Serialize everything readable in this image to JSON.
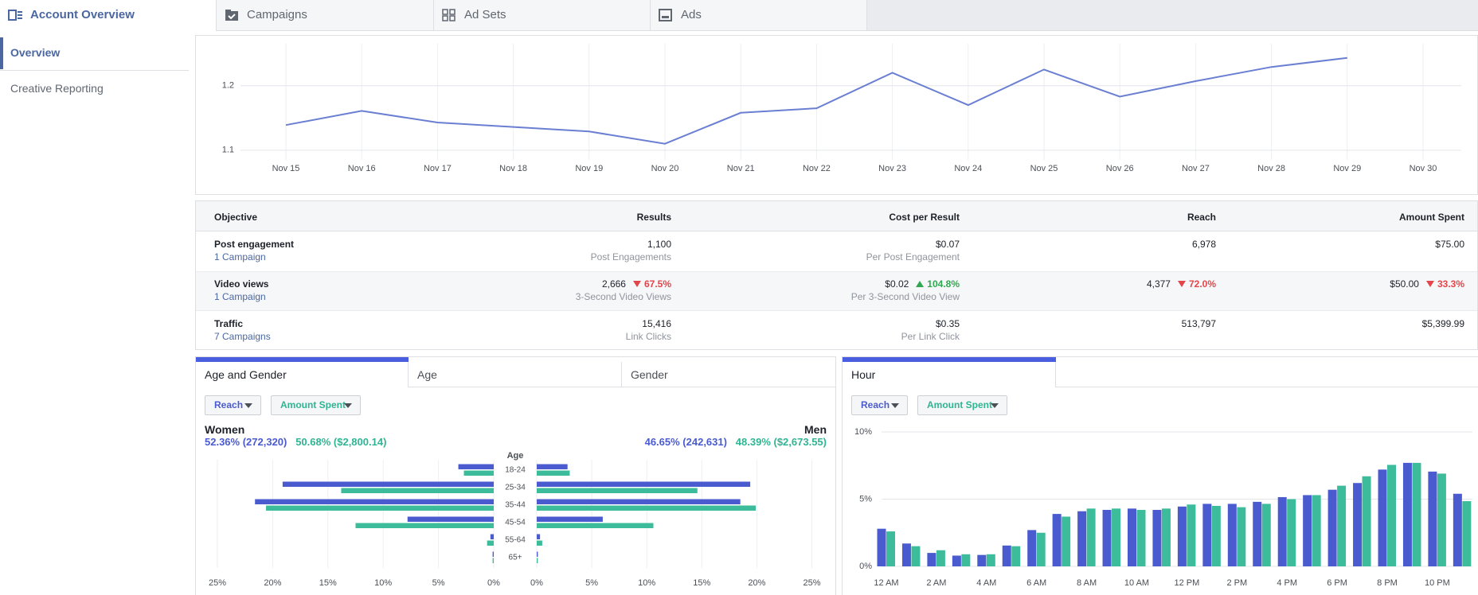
{
  "nav": {
    "tabs": [
      "Account Overview",
      "Campaigns",
      "Ad Sets",
      "Ads"
    ]
  },
  "sidebar": {
    "items": [
      "Overview",
      "Creative Reporting"
    ]
  },
  "trend_chart": {
    "type": "line",
    "categories": [
      "Nov 15",
      "Nov 16",
      "Nov 17",
      "Nov 18",
      "Nov 19",
      "Nov 20",
      "Nov 21",
      "Nov 22",
      "Nov 23",
      "Nov 24",
      "Nov 25",
      "Nov 26",
      "Nov 27",
      "Nov 28",
      "Nov 29",
      "Nov 30"
    ],
    "values": [
      1.139,
      1.161,
      1.143,
      1.136,
      1.129,
      1.11,
      1.158,
      1.165,
      1.22,
      1.17,
      1.225,
      1.183,
      1.207,
      1.229,
      1.243,
      null
    ],
    "color": "#6a7fd2",
    "ylim": [
      1.085,
      1.265
    ],
    "yticks": [
      1.1,
      1.2
    ],
    "grid": true
  },
  "table": {
    "columns": [
      "Objective",
      "Results",
      "Cost per Result",
      "Reach",
      "Amount Spent"
    ],
    "rows": [
      {
        "objective": "Post engagement",
        "campaigns": "1 Campaign",
        "cells": [
          {
            "value": "1,100",
            "sub": "Post Engagements"
          },
          {
            "value": "$0.07",
            "sub": "Per Post Engagement"
          },
          {
            "value": "6,978"
          },
          {
            "value": "$75.00"
          }
        ]
      },
      {
        "objective": "Video views",
        "campaigns": "1 Campaign",
        "cells": [
          {
            "value": "2,666",
            "sub": "3-Second Video Views",
            "change": {
              "text": "67.5%",
              "direction": "down"
            }
          },
          {
            "value": "$0.02",
            "sub": "Per 3-Second Video View",
            "change": {
              "text": "104.8%",
              "direction": "up"
            }
          },
          {
            "value": "4,377",
            "change": {
              "text": "72.0%",
              "direction": "down"
            }
          },
          {
            "value": "$50.00",
            "change": {
              "text": "33.3%",
              "direction": "down"
            }
          }
        ]
      },
      {
        "objective": "Traffic",
        "campaigns": "7 Campaigns",
        "cells": [
          {
            "value": "15,416",
            "sub": "Link Clicks"
          },
          {
            "value": "$0.35",
            "sub": "Per Link Click"
          },
          {
            "value": "513,797"
          },
          {
            "value": "$5,399.99"
          }
        ]
      }
    ]
  },
  "age_gender": {
    "type": "butterfly_bar",
    "tabs": [
      "Age and Gender",
      "Age",
      "Gender"
    ],
    "women": {
      "label": "Women",
      "reach": "52.36% (272,320)",
      "spent": "50.68% ($2,800.14)"
    },
    "men": {
      "label": "Men",
      "reach": "46.65% (242,631)",
      "spent": "48.39% ($2,673.55)"
    },
    "category_label": "Age",
    "categories": [
      "18-24",
      "25-34",
      "35-44",
      "45-54",
      "55-64",
      "65+"
    ],
    "series": [
      {
        "name": "Reach",
        "color": "#4a5bd0",
        "women": [
          3.2,
          19.1,
          21.6,
          7.8,
          0.3,
          0.1
        ],
        "men": [
          2.8,
          19.4,
          18.5,
          6.0,
          0.3,
          0.1
        ]
      },
      {
        "name": "Amount Spent",
        "color": "#3dbc9b",
        "women": [
          2.7,
          13.8,
          20.6,
          12.5,
          0.6,
          0.1
        ],
        "men": [
          3.0,
          14.6,
          19.9,
          10.6,
          0.5,
          0.1
        ]
      }
    ],
    "xlim": [
      0,
      25
    ],
    "xticks": [
      {
        "value": 0,
        "label": "0%"
      },
      {
        "value": 5,
        "label": "5%"
      },
      {
        "value": 10,
        "label": "10%"
      },
      {
        "value": 15,
        "label": "15%"
      },
      {
        "value": 20,
        "label": "20%"
      },
      {
        "value": 25,
        "label": "25%"
      }
    ],
    "grid": true
  },
  "hour_chart": {
    "type": "bar",
    "tabs": [
      "Hour"
    ],
    "categories": [
      "12 AM",
      null,
      "2 AM",
      null,
      "4 AM",
      null,
      "6 AM",
      null,
      "8 AM",
      null,
      "10 AM",
      null,
      "12 PM",
      null,
      "2 PM",
      null,
      "4 PM",
      null,
      "6 PM",
      null,
      "8 PM",
      null,
      "10 PM",
      null
    ],
    "series": [
      {
        "name": "Reach",
        "color": "#4a5bd0",
        "values": [
          2.8,
          1.7,
          1.0,
          0.8,
          0.85,
          1.55,
          2.7,
          3.9,
          4.1,
          4.2,
          4.3,
          4.2,
          4.45,
          4.65,
          4.65,
          4.8,
          5.15,
          5.3,
          5.7,
          6.2,
          7.2,
          7.7,
          7.05,
          5.4
        ]
      },
      {
        "name": "Amount Spent",
        "color": "#3dbc9b",
        "values": [
          2.6,
          1.5,
          1.2,
          0.9,
          0.9,
          1.5,
          2.5,
          3.7,
          4.3,
          4.3,
          4.2,
          4.3,
          4.6,
          4.5,
          4.4,
          4.65,
          5.0,
          5.3,
          6.0,
          6.7,
          7.55,
          7.7,
          6.9,
          4.85
        ]
      }
    ],
    "ylim": [
      0,
      10
    ],
    "yticks": [
      {
        "value": 0,
        "label": "0%"
      },
      {
        "value": 5,
        "label": "5%"
      },
      {
        "value": 10,
        "label": "10%"
      }
    ],
    "grid": true
  }
}
